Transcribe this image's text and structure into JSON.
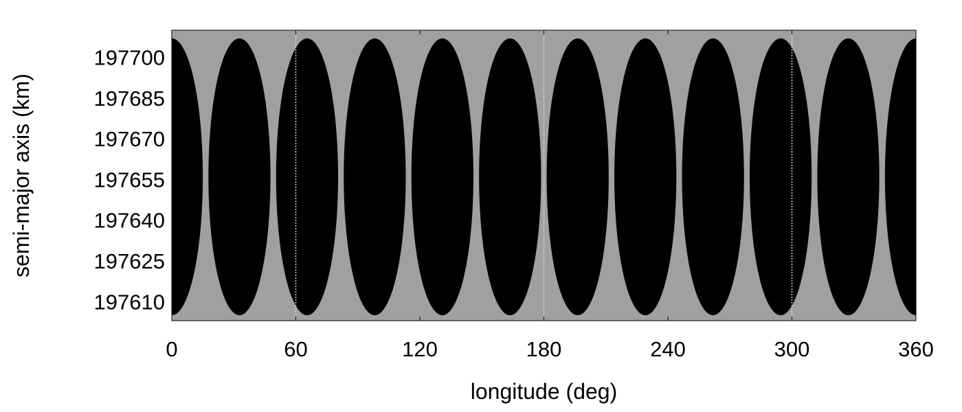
{
  "chart_data": {
    "type": "heatmap",
    "title": "",
    "xlabel": "longitude (deg)",
    "ylabel": "semi-major axis (km)",
    "xlim": [
      0,
      360
    ],
    "ylim": [
      197603,
      197710
    ],
    "xticks": [
      0,
      60,
      120,
      180,
      240,
      300,
      360
    ],
    "yticks": [
      197610,
      197625,
      197640,
      197655,
      197670,
      197685,
      197700
    ],
    "grid": false,
    "legend": "none",
    "colors": {
      "background": "#a0a0a0",
      "region": "#000000",
      "divider": "#d8d8d8"
    },
    "regions": {
      "count": 11,
      "spacing_deg": 32.727,
      "first_center_deg": 0,
      "half_width_deg": 15,
      "a_center_km": 197656,
      "a_half_range_km": 51,
      "shape": "ellipse"
    },
    "dividers_deg": [
      60,
      180,
      300
    ]
  }
}
